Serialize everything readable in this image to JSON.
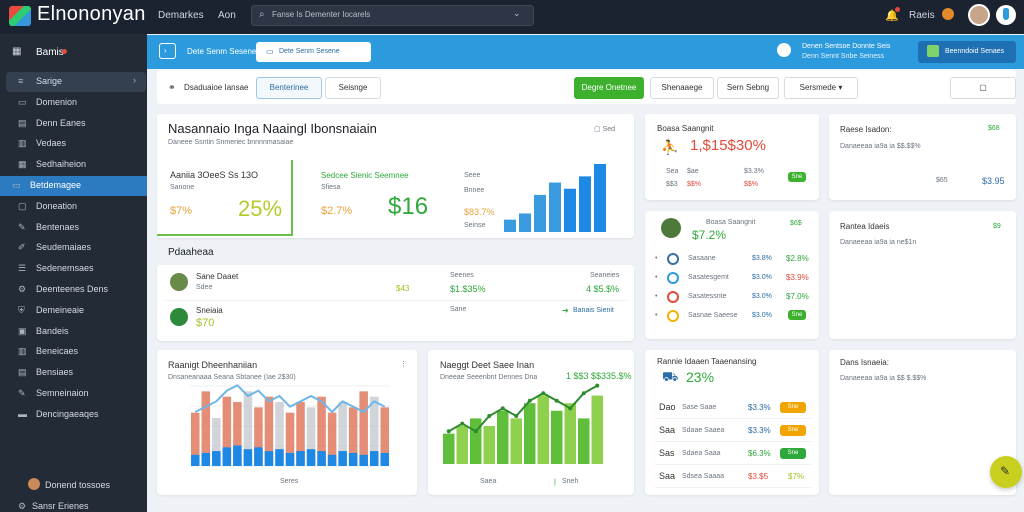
{
  "header": {
    "brand": "Elnononyan",
    "links": [
      "Demarkes",
      "Aon"
    ],
    "search_placeholder": "Fanse Is Dementer Iocarels",
    "user_label": "Raeis"
  },
  "sidebar": {
    "title": "Bamis",
    "items": [
      {
        "label": "Sarige",
        "icon": "layers-icon"
      },
      {
        "label": "Domenion",
        "icon": "doc-icon"
      },
      {
        "label": "Denn Eanes",
        "icon": "folder-icon"
      },
      {
        "label": "Vedaes",
        "icon": "video-icon"
      },
      {
        "label": "Sedhaiheion",
        "icon": "grid-icon"
      },
      {
        "label": "Betdemagee",
        "icon": "monitor-icon"
      },
      {
        "label": "Doneation",
        "icon": "box-icon"
      },
      {
        "label": "Bentenaes",
        "icon": "pencil-icon"
      },
      {
        "label": "Seudemaiaes",
        "icon": "edit-icon"
      },
      {
        "label": "Sedenemsaes",
        "icon": "users-icon"
      },
      {
        "label": "Deenteenes Dens",
        "icon": "gear-icon"
      },
      {
        "label": "Demeineaie",
        "icon": "shield-icon"
      },
      {
        "label": "Bandeis",
        "icon": "bag-icon"
      },
      {
        "label": "Beneicaes",
        "icon": "chart-icon"
      },
      {
        "label": "Bensiaes",
        "icon": "table-icon"
      },
      {
        "label": "Semneinaion",
        "icon": "tool-icon"
      },
      {
        "label": "Dencingaeaqes",
        "icon": "chat-icon"
      }
    ],
    "user_name": "Donend tossoes",
    "footer_link": "Sansr Erienes"
  },
  "banner": {
    "left_label": "Dete Senm Sesene",
    "info_line1": "Denen Sentsoe Donnte Seis",
    "info_line2": "Denn Sennt Snbe Seiness",
    "right_button": "Beenndoid Senaes"
  },
  "toolbar": {
    "link_icon_label": "Dsaduaioe Iansae",
    "tabs": [
      "Benterinee",
      "Seisnge"
    ],
    "primary_button": "Degre Onetnee",
    "buttons": [
      "Shenaaege",
      "Sern Sebng"
    ],
    "dropdown": "Sersmede"
  },
  "overview": {
    "title": "Nasannaio Inga Naaingl Ibonsnaiain",
    "subtitle": "Daneee Ssntin Snmeriec bnnnnmasaiae",
    "tag": "Sed",
    "kpi1_label": "Aaniia 3OeeS Ss 13O",
    "kpi1_sub": "Sanone",
    "kpi1_value": "$7%",
    "kpi1_big": "25%",
    "kpi2_label": "Sedcee Sienic Seemnee",
    "kpi2_sub": "Sfiesa",
    "kpi2_value": "$2.7%",
    "kpi2_big": "$16",
    "kpi3_lines": [
      "Seee",
      "Bnnee",
      "$83.7%",
      "Seinse"
    ],
    "chart_values": [
      2,
      3,
      6,
      8,
      7,
      9,
      11
    ]
  },
  "purchases": {
    "title": "Pdaaheaa",
    "rows": [
      {
        "name": "Sane Daaet",
        "sub": "Sdee",
        "mid_top": "Seenes",
        "mid": "$1.$35%",
        "right_top": "Seaneies",
        "right": "4 $5.$%",
        "amount": "$43",
        "amount_color": "#9cc21f"
      },
      {
        "name": "Sneiaia",
        "sub": "",
        "mid_top": "Sane",
        "mid": "",
        "right_top": "",
        "right": "Banais Sienit",
        "amount": "$70",
        "amount_color": "#9cc21f"
      }
    ]
  },
  "stat1": {
    "title": "Boasa Saangnit",
    "value": "1,$15$30%",
    "r1": [
      "Sea",
      "$ae",
      "$3.3%"
    ],
    "r2": [
      "$$3",
      "$$%",
      "$$%"
    ],
    "badge": "Sne"
  },
  "stat2": {
    "title": "Raese Isadon:",
    "tag": "$68",
    "line": "Danaeeaa ia9a ia $$.$$%",
    "values": [
      "$65",
      "$3.95"
    ]
  },
  "stat3": {
    "value": "$7.2%",
    "tag": "$6$",
    "rows": [
      {
        "label": "Sasaane",
        "v1": "$3.8%",
        "v2": "$2.8%"
      },
      {
        "label": "Sasatesgemt",
        "v1": "$3.0%",
        "v2": "$3.9%"
      },
      {
        "label": "Sasatessnte",
        "v1": "$3.0%",
        "v2": "$7.0%"
      },
      {
        "label": "Sasnae Saeese",
        "v1": "$3.0%",
        "v2": "Sne"
      }
    ]
  },
  "stat4": {
    "title": "Rantea Idaeis",
    "line": "Danaeeaa ia9a ia ne$1n",
    "tag": "$9"
  },
  "chart_a": {
    "title": "Raanigt Dheenhaniian",
    "subtitle": "Dnsaneanaaa Seana Sbtanee (Iae 2$30)",
    "xlabel": "Seres",
    "series_bars": [
      10,
      14,
      9,
      13,
      12,
      14,
      11,
      13,
      12,
      10,
      12,
      11,
      13,
      10,
      12,
      11,
      14,
      13,
      11
    ],
    "series_line": [
      6,
      7,
      8,
      10,
      11,
      9,
      10,
      8,
      9,
      7,
      8,
      9,
      8,
      6,
      8,
      7,
      6,
      8,
      7
    ]
  },
  "chart_b": {
    "title": "Naeggt Deet Saee Inan",
    "subtitle": "Dneeae Seeenbnt Dennes Dna",
    "value": "1 $$3 $$335.$%",
    "legend": [
      "Saea",
      "Sneh"
    ],
    "bars": [
      4,
      5,
      6,
      5,
      7,
      6,
      8,
      9,
      7,
      8,
      6,
      9
    ],
    "line": [
      3,
      4,
      3,
      5,
      6,
      5,
      7,
      8,
      7,
      6,
      8,
      9
    ]
  },
  "stat5": {
    "title": "Rannie Idaaen Taaenansing",
    "big": "23%",
    "rows": [
      {
        "a": "Dao",
        "b": "Sase Saae",
        "v": "$3.3%",
        "badge": "Sne",
        "badge_color": "#f0a500"
      },
      {
        "a": "Saa",
        "b": "Sdaae Saaea",
        "v": "$3.3%",
        "badge": "Sne",
        "badge_color": "#f0a500"
      },
      {
        "a": "Sas",
        "b": "Sdaea Saaa",
        "v": "$6.3%",
        "badge": "Sne",
        "badge_color": "#2ea83a"
      },
      {
        "a": "Saa",
        "b": "Sdsea Saaaa",
        "v": "$3.$5",
        "badge": "$7%",
        "badge_color": ""
      }
    ]
  },
  "stat6": {
    "title": "Dans Isnaeia:",
    "line": "Danaeeaa ia9a ia $$ $.$$%"
  },
  "colors": {
    "accent_blue": "#2b9bde",
    "sidebar_bg": "#232b36",
    "primary_green": "#3db02e",
    "bar_blue": "#1e88e5"
  }
}
